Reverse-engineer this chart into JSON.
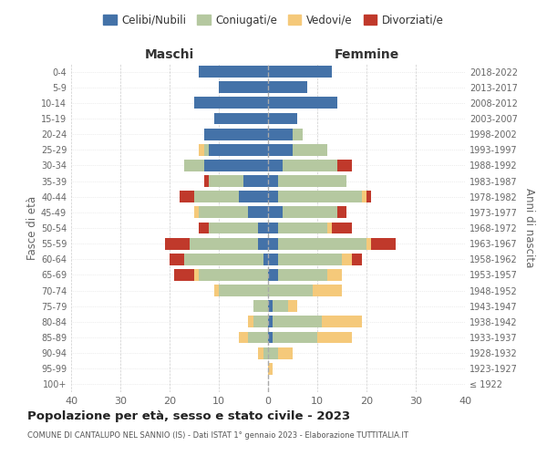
{
  "age_groups": [
    "100+",
    "95-99",
    "90-94",
    "85-89",
    "80-84",
    "75-79",
    "70-74",
    "65-69",
    "60-64",
    "55-59",
    "50-54",
    "45-49",
    "40-44",
    "35-39",
    "30-34",
    "25-29",
    "20-24",
    "15-19",
    "10-14",
    "5-9",
    "0-4"
  ],
  "birth_years": [
    "≤ 1922",
    "1923-1927",
    "1928-1932",
    "1933-1937",
    "1938-1942",
    "1943-1947",
    "1948-1952",
    "1953-1957",
    "1958-1962",
    "1963-1967",
    "1968-1972",
    "1973-1977",
    "1978-1982",
    "1983-1987",
    "1988-1992",
    "1993-1997",
    "1998-2002",
    "2003-2007",
    "2008-2012",
    "2013-2017",
    "2018-2022"
  ],
  "maschi": {
    "celibi": [
      0,
      0,
      0,
      0,
      0,
      0,
      0,
      0,
      1,
      2,
      2,
      4,
      6,
      5,
      13,
      12,
      13,
      11,
      15,
      10,
      14
    ],
    "coniugati": [
      0,
      0,
      1,
      4,
      3,
      3,
      10,
      14,
      16,
      14,
      10,
      10,
      9,
      7,
      4,
      1,
      0,
      0,
      0,
      0,
      0
    ],
    "vedovi": [
      0,
      0,
      1,
      2,
      1,
      0,
      1,
      1,
      0,
      0,
      0,
      1,
      0,
      0,
      0,
      1,
      0,
      0,
      0,
      0,
      0
    ],
    "divorziati": [
      0,
      0,
      0,
      0,
      0,
      0,
      0,
      4,
      3,
      5,
      2,
      0,
      3,
      1,
      0,
      0,
      0,
      0,
      0,
      0,
      0
    ]
  },
  "femmine": {
    "nubili": [
      0,
      0,
      0,
      1,
      1,
      1,
      0,
      2,
      2,
      2,
      2,
      3,
      2,
      2,
      3,
      5,
      5,
      6,
      14,
      8,
      13
    ],
    "coniugate": [
      0,
      0,
      2,
      9,
      10,
      3,
      9,
      10,
      13,
      18,
      10,
      11,
      17,
      14,
      11,
      7,
      2,
      0,
      0,
      0,
      0
    ],
    "vedove": [
      0,
      1,
      3,
      7,
      8,
      2,
      6,
      3,
      2,
      1,
      1,
      0,
      1,
      0,
      0,
      0,
      0,
      0,
      0,
      0,
      0
    ],
    "divorziate": [
      0,
      0,
      0,
      0,
      0,
      0,
      0,
      0,
      2,
      5,
      4,
      2,
      1,
      0,
      3,
      0,
      0,
      0,
      0,
      0,
      0
    ]
  },
  "colors": {
    "celibi_nubili": "#4472a8",
    "coniugati_e": "#b5c8a0",
    "vedovi_e": "#f5c97a",
    "divorziati_e": "#c0392b"
  },
  "xlim": 40,
  "title": "Popolazione per età, sesso e stato civile - 2023",
  "subtitle": "COMUNE DI CANTALUPO NEL SANNIO (IS) - Dati ISTAT 1° gennaio 2023 - Elaborazione TUTTITALIA.IT",
  "ylabel_left": "Fasce di età",
  "ylabel_right": "Anni di nascita",
  "xlabel_maschi": "Maschi",
  "xlabel_femmine": "Femmine",
  "legend_labels": [
    "Celibi/Nubili",
    "Coniugati/e",
    "Vedovi/e",
    "Divorziati/e"
  ],
  "background_color": "#ffffff"
}
